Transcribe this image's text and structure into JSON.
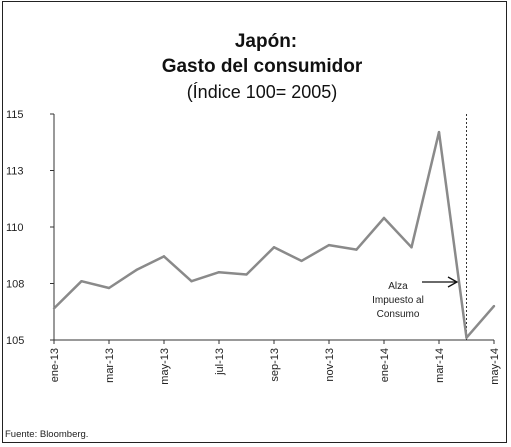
{
  "chart_data": {
    "type": "line",
    "title_line1": "Japón:",
    "title_line2": "Gasto del consumidor",
    "subtitle": "(Índice 100= 2005)",
    "xlabel": "",
    "ylabel": "",
    "x_tick_labels": [
      "ene-13",
      "mar-13",
      "may-13",
      "jul-13",
      "sep-13",
      "nov-13",
      "ene-14",
      "mar-14",
      "may-14"
    ],
    "y_tick_labels": [
      "105",
      "108",
      "110",
      "113",
      "115"
    ],
    "ylim": [
      105,
      115
    ],
    "x": [
      "2013-01",
      "2013-02",
      "2013-03",
      "2013-04",
      "2013-05",
      "2013-06",
      "2013-07",
      "2013-08",
      "2013-09",
      "2013-10",
      "2013-11",
      "2013-12",
      "2014-01",
      "2014-02",
      "2014-03",
      "2014-04",
      "2014-05"
    ],
    "series": [
      {
        "name": "",
        "color": "#8a8a8a",
        "values": [
          106.4,
          107.6,
          107.3,
          108.1,
          108.7,
          107.6,
          108.0,
          107.9,
          109.1,
          108.5,
          109.2,
          109.0,
          110.4,
          109.1,
          114.2,
          105.1,
          106.5
        ]
      }
    ],
    "marker": {
      "x": "2014-04",
      "style": "dotted",
      "annotation": [
        "Alza",
        "Impuesto al",
        "Consumo"
      ]
    },
    "grid": false,
    "legend": "none",
    "source": "Fuente: Bloomberg."
  }
}
